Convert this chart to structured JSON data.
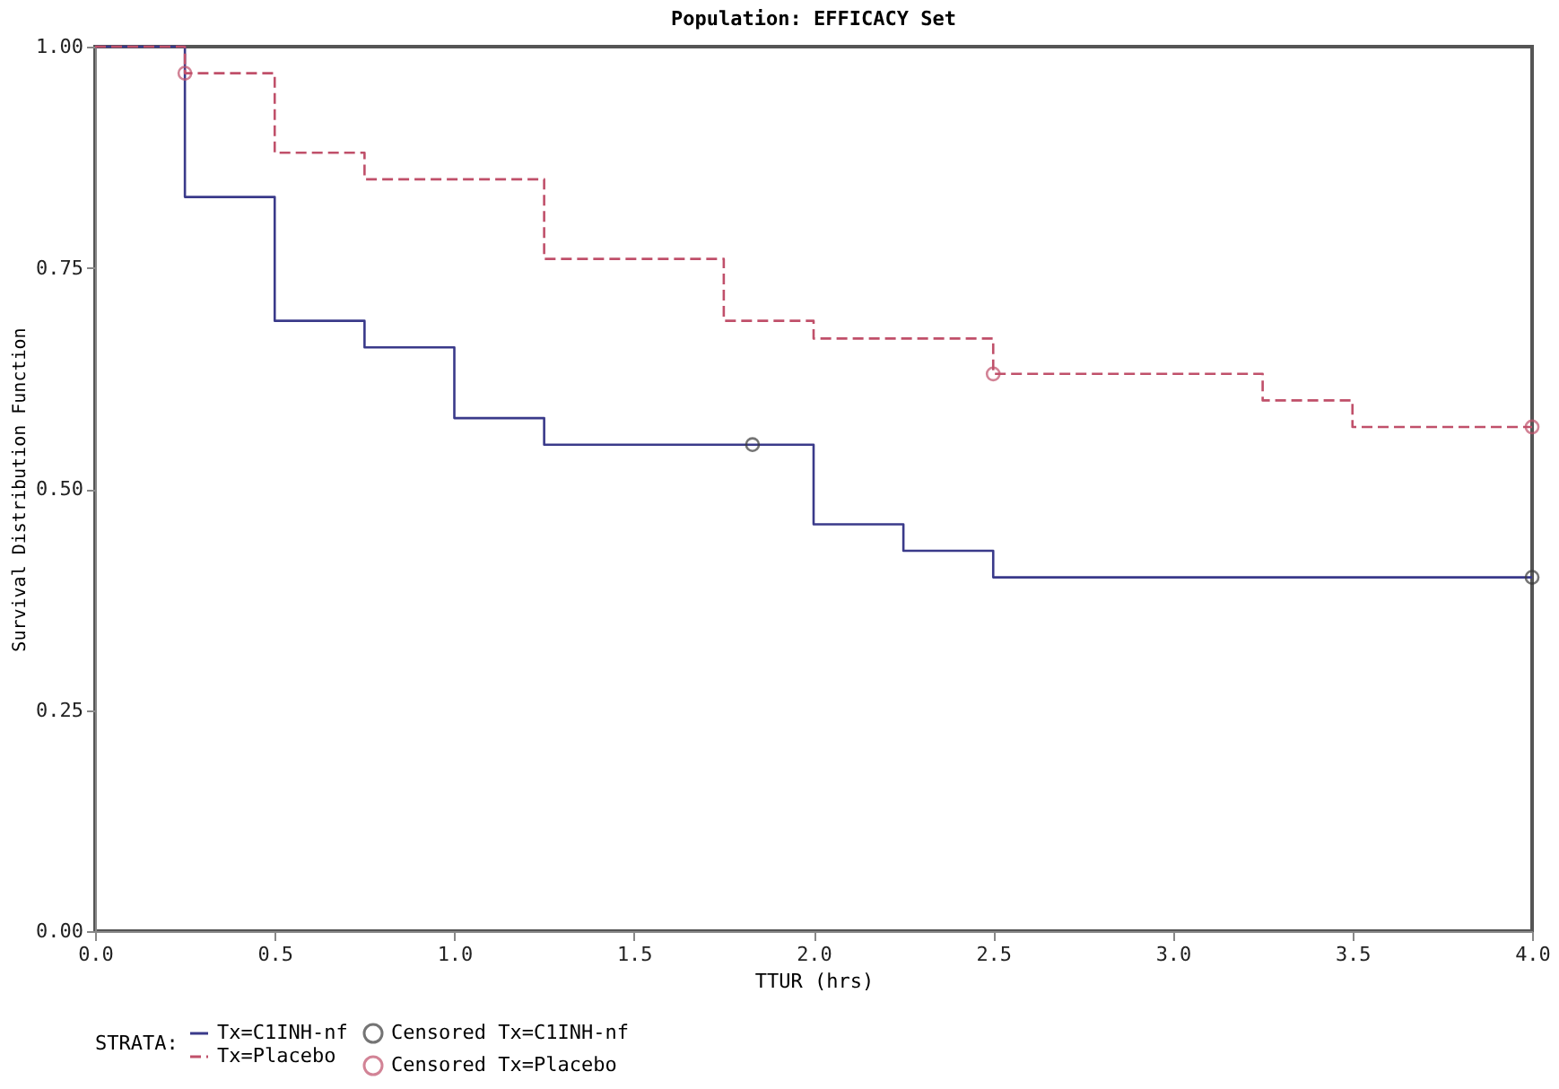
{
  "chart_data": {
    "type": "step",
    "title": "Population:  EFFICACY Set",
    "xlabel": "TTUR (hrs)",
    "ylabel": "Survival Distribution Function",
    "legend_title": "STRATA:",
    "xlim": [
      0,
      4
    ],
    "ylim": [
      0,
      1
    ],
    "xticks": [
      {
        "value": 0,
        "label": "0.0"
      },
      {
        "value": 0.5,
        "label": "0.5"
      },
      {
        "value": 1,
        "label": "1.0"
      },
      {
        "value": 1.5,
        "label": "1.5"
      },
      {
        "value": 2,
        "label": "2.0"
      },
      {
        "value": 2.5,
        "label": "2.5"
      },
      {
        "value": 3,
        "label": "3.0"
      },
      {
        "value": 3.5,
        "label": "3.5"
      },
      {
        "value": 4,
        "label": "4.0"
      }
    ],
    "yticks": [
      {
        "value": 0,
        "label": "0.00"
      },
      {
        "value": 0.25,
        "label": "0.25"
      },
      {
        "value": 0.5,
        "label": "0.50"
      },
      {
        "value": 0.75,
        "label": "0.75"
      },
      {
        "value": 1,
        "label": "1.00"
      }
    ],
    "grid": false,
    "legend": "bottom",
    "series": [
      {
        "name": "Tx=C1INH-nf",
        "color": "#3a3a8a",
        "line_style": "solid",
        "x": [
          0,
          0.25,
          0.5,
          0.75,
          1.0,
          1.25,
          2.0,
          2.25,
          2.5,
          4.0
        ],
        "values": [
          1,
          0.83,
          0.69,
          0.66,
          0.58,
          0.55,
          0.46,
          0.43,
          0.4,
          0.4
        ]
      },
      {
        "name": "Tx=Placebo",
        "color": "#c0506a",
        "line_style": "dashed",
        "x": [
          0,
          0.25,
          0.5,
          0.75,
          1.25,
          1.75,
          2.0,
          2.5,
          3.25,
          3.5,
          4.0
        ],
        "values": [
          1,
          0.97,
          0.88,
          0.85,
          0.76,
          0.69,
          0.67,
          0.63,
          0.6,
          0.57,
          0.57
        ]
      },
      {
        "name": "Censored Tx=C1INH-nf",
        "type": "scatter",
        "marker": "circle",
        "color": "#3a3a3a",
        "x": [
          1.83,
          4.0
        ],
        "values": [
          0.55,
          0.4
        ]
      },
      {
        "name": "Censored Tx=Placebo",
        "type": "scatter",
        "marker": "circle",
        "color": "#c0506a",
        "x": [
          0.25,
          2.5,
          4.0
        ],
        "values": [
          0.97,
          0.63,
          0.57
        ]
      }
    ]
  }
}
